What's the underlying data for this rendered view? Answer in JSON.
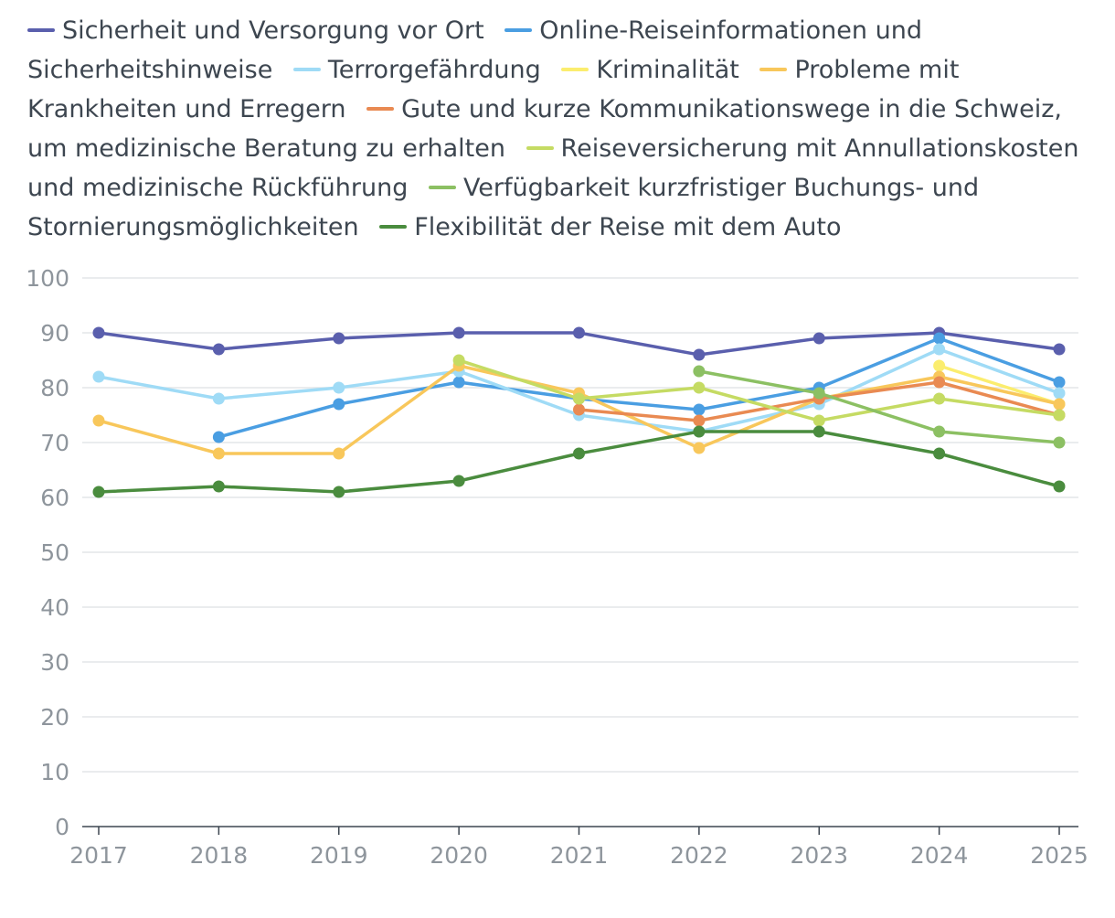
{
  "chart_data": {
    "type": "line",
    "categories": [
      "2017",
      "2018",
      "2019",
      "2020",
      "2021",
      "2022",
      "2023",
      "2024",
      "2025"
    ],
    "ylim": [
      0,
      100
    ],
    "yticks": [
      "0",
      "10",
      "20",
      "30",
      "40",
      "50",
      "60",
      "70",
      "80",
      "90",
      "100"
    ],
    "grid": true,
    "legend_position": "top",
    "series": [
      {
        "name": "Sicherheit und Versorgung vor Ort",
        "color": "#5a5fad",
        "values": [
          90,
          87,
          89,
          90,
          90,
          86,
          89,
          90,
          87
        ]
      },
      {
        "name": "Online-Reiseinformationen und Sicherheitshinweise",
        "color": "#4a9ee2",
        "values": [
          null,
          71,
          77,
          81,
          78,
          76,
          80,
          89,
          81
        ]
      },
      {
        "name": "Terrorgefährdung",
        "color": "#9fdbf6",
        "values": [
          82,
          78,
          80,
          83,
          75,
          72,
          77,
          87,
          79
        ]
      },
      {
        "name": "Kriminalität",
        "color": "#fbed6e",
        "values": [
          null,
          null,
          null,
          null,
          null,
          null,
          null,
          84,
          77
        ]
      },
      {
        "name": "Probleme mit Krankheiten und Erregern",
        "color": "#f8c75b",
        "values": [
          74,
          68,
          68,
          84,
          79,
          69,
          78,
          82,
          77
        ]
      },
      {
        "name": "Gute und kurze Kommunikationswege in die Schweiz, um medizinische Beratung zu erhalten",
        "color": "#e98a52",
        "values": [
          null,
          null,
          null,
          null,
          76,
          74,
          78,
          81,
          75
        ]
      },
      {
        "name": "Reiseversicherung mit Annullationskosten und medizinische Rückführung",
        "color": "#c5db63",
        "values": [
          null,
          null,
          null,
          85,
          78,
          80,
          74,
          78,
          75
        ]
      },
      {
        "name": "Verfügbarkeit kurzfristiger Buchungs- und Stornierungsmöglichkeiten",
        "color": "#8cc063",
        "values": [
          null,
          null,
          null,
          null,
          null,
          83,
          79,
          72,
          70
        ]
      },
      {
        "name": "Flexibilität der Reise mit dem Auto",
        "color": "#4a8c3e",
        "values": [
          61,
          62,
          61,
          63,
          68,
          72,
          72,
          68,
          62
        ]
      }
    ]
  }
}
